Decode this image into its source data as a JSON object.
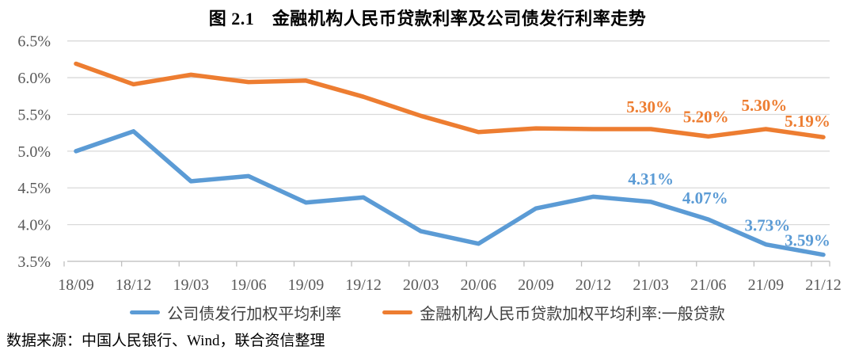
{
  "title": "图 2.1　金融机构人民币贷款利率及公司债发行利率走势",
  "source_note": "数据来源：中国人民银行、Wind，联合资信整理",
  "colors": {
    "corporate_bond_line": "#5B9BD5",
    "general_loan_line": "#ED7D31",
    "gridline": "#D9D9D9",
    "axis_line": "#BFBFBF",
    "axis_text": "#595959",
    "legend_text": "#404040",
    "title_text": "#000000"
  },
  "chart_data": {
    "type": "line",
    "title": "图 2.1　金融机构人民币贷款利率及公司债发行利率走势",
    "categories": [
      "18/09",
      "18/12",
      "19/03",
      "19/06",
      "19/09",
      "19/12",
      "20/03",
      "20/06",
      "20/09",
      "20/12",
      "21/03",
      "21/06",
      "21/09",
      "21/12"
    ],
    "y_axis": {
      "min": 3.5,
      "max": 6.5,
      "step": 0.5,
      "ticks": [
        {
          "v": 6.5,
          "label": "6.5%"
        },
        {
          "v": 6.0,
          "label": "6.0%"
        },
        {
          "v": 5.5,
          "label": "5.5%"
        },
        {
          "v": 5.0,
          "label": "5.0%"
        },
        {
          "v": 4.5,
          "label": "4.5%"
        },
        {
          "v": 4.0,
          "label": "4.0%"
        },
        {
          "v": 3.5,
          "label": "3.5%"
        }
      ]
    },
    "grid": true,
    "legend_position": "bottom",
    "series": [
      {
        "id": "corporate-bond",
        "name": "公司债发行加权平均利率",
        "color": "#5B9BD5",
        "values": [
          5.0,
          5.27,
          4.59,
          4.66,
          4.3,
          4.37,
          3.91,
          3.74,
          4.22,
          4.38,
          4.31,
          4.07,
          3.73,
          3.59
        ],
        "point_labels": [
          {
            "index": 10,
            "text": "4.31%",
            "dx": 0,
            "dy": -22
          },
          {
            "index": 11,
            "text": "4.07%",
            "dx": -4,
            "dy": -20
          },
          {
            "index": 12,
            "text": "3.73%",
            "dx": 2,
            "dy": -17
          },
          {
            "index": 13,
            "text": "3.59%",
            "dx": -20,
            "dy": -11
          }
        ]
      },
      {
        "id": "general-loan",
        "name": "金融机构人民币贷款加权平均利率:一般贷款",
        "color": "#ED7D31",
        "values": [
          6.19,
          5.91,
          6.04,
          5.94,
          5.96,
          5.74,
          5.48,
          5.26,
          5.31,
          5.3,
          5.3,
          5.2,
          5.3,
          5.19
        ],
        "point_labels": [
          {
            "index": 10,
            "text": "5.30%",
            "dx": -2,
            "dy": -21
          },
          {
            "index": 11,
            "text": "5.20%",
            "dx": -3,
            "dy": -18
          },
          {
            "index": 12,
            "text": "5.30%",
            "dx": -2,
            "dy": -23
          },
          {
            "index": 13,
            "text": "5.19%",
            "dx": -20,
            "dy": -13
          }
        ]
      }
    ]
  }
}
